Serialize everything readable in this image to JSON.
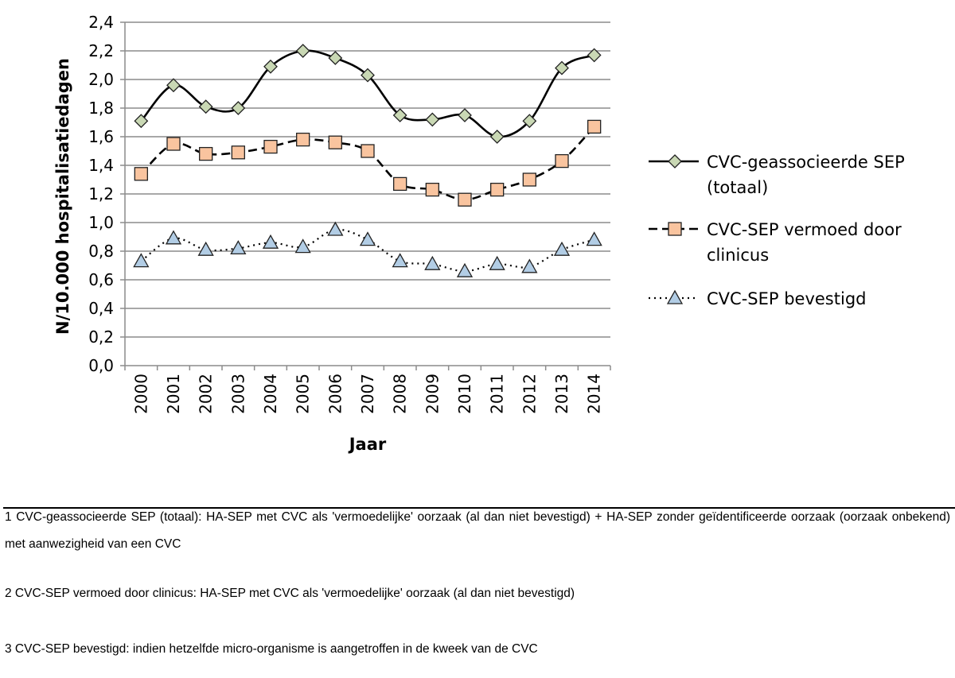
{
  "chart_data": {
    "type": "line",
    "title": "",
    "xlabel": "Jaar",
    "ylabel": "N/10.000 hospitalisatiedagen",
    "ylim": [
      0,
      2.4
    ],
    "yticks": [
      "0,0",
      "0,2",
      "0,4",
      "0,6",
      "0,8",
      "1,0",
      "1,2",
      "1,4",
      "1,6",
      "1,8",
      "2,0",
      "2,2",
      "2,4"
    ],
    "grid": true,
    "legend_position": "right",
    "categories": [
      "2000",
      "2001",
      "2002",
      "2003",
      "2004",
      "2005",
      "2006",
      "2007",
      "2008",
      "2009",
      "2010",
      "2011",
      "2012",
      "2013",
      "2014"
    ],
    "series": [
      {
        "name": "CVC-geassocieerde SEP (totaal)",
        "legend_lines": [
          "CVC-geassocieerde SEP",
          "(totaal)"
        ],
        "values": [
          1.71,
          1.96,
          1.81,
          1.8,
          2.09,
          2.2,
          2.15,
          2.03,
          1.75,
          1.72,
          1.75,
          1.6,
          1.71,
          2.08,
          2.17
        ],
        "line_style": "solid",
        "marker": "diamond",
        "marker_color": "#c9d8b4"
      },
      {
        "name": "CVC-SEP vermoed door clinicus",
        "legend_lines": [
          "CVC-SEP vermoed door",
          "clinicus"
        ],
        "values": [
          1.34,
          1.55,
          1.48,
          1.49,
          1.53,
          1.58,
          1.56,
          1.5,
          1.27,
          1.23,
          1.16,
          1.23,
          1.3,
          1.43,
          1.67
        ],
        "line_style": "dashed",
        "marker": "square",
        "marker_color": "#f9c49f"
      },
      {
        "name": "CVC-SEP bevestigd",
        "legend_lines": [
          "CVC-SEP bevestigd"
        ],
        "values": [
          0.73,
          0.89,
          0.81,
          0.82,
          0.86,
          0.83,
          0.95,
          0.88,
          0.73,
          0.71,
          0.66,
          0.71,
          0.69,
          0.81,
          0.88
        ],
        "line_style": "dotted",
        "marker": "triangle",
        "marker_color": "#b2cde5"
      }
    ]
  },
  "footnotes": [
    "1 CVC-geassocieerde SEP (totaal): HA-SEP met CVC als 'vermoedelijke' oorzaak (al dan niet bevestigd) + HA-SEP zonder geïdentificeerde oorzaak (oorzaak onbekend) met aanwezigheid van een CVC",
    "2 CVC-SEP vermoed door clinicus: HA-SEP met CVC als 'vermoedelijke' oorzaak (al dan niet bevestigd)",
    "3 CVC-SEP bevestigd: indien hetzelfde micro-organisme is aangetroffen in de kweek van de CVC"
  ]
}
